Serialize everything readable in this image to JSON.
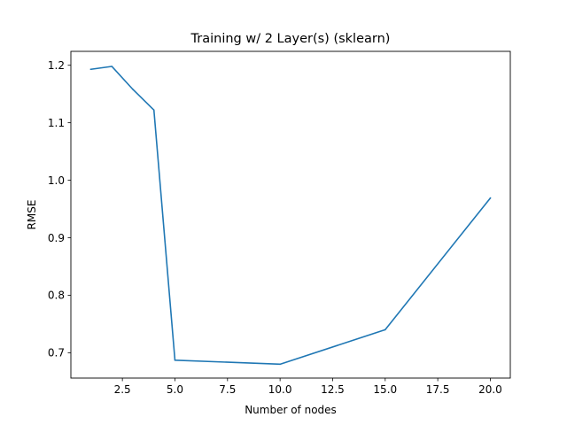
{
  "chart_data": {
    "type": "line",
    "title": "Training w/ 2 Layer(s) (sklearn)",
    "xlabel": "Number of nodes",
    "ylabel": "RMSE",
    "xlim": [
      0.05,
      20.95
    ],
    "ylim": [
      0.6559,
      1.2242
    ],
    "x_ticks": [
      2.5,
      5.0,
      7.5,
      10.0,
      12.5,
      15.0,
      17.5,
      20.0
    ],
    "x_tick_labels": [
      "2.5",
      "5.0",
      "7.5",
      "10.0",
      "12.5",
      "15.0",
      "17.5",
      "20.0"
    ],
    "y_ticks": [
      0.7,
      0.8,
      0.9,
      1.0,
      1.1,
      1.2
    ],
    "y_tick_labels": [
      "0.7",
      "0.8",
      "0.9",
      "1.0",
      "1.1",
      "1.2"
    ],
    "grid": false,
    "legend": "none",
    "series": [
      {
        "color": "#1f77b4",
        "x": [
          1,
          2,
          3,
          4,
          5,
          10,
          15,
          20
        ],
        "y": [
          1.193,
          1.198,
          1.158,
          1.122,
          0.687,
          0.68,
          0.74,
          0.969
        ]
      }
    ]
  }
}
